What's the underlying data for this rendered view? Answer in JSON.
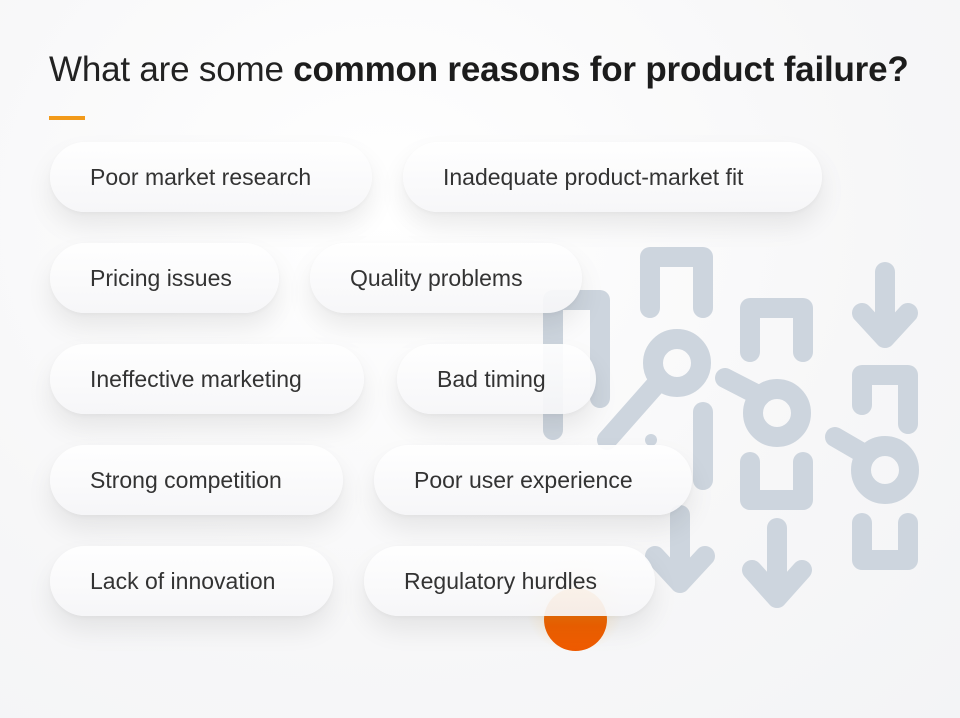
{
  "title": {
    "prefix": "What are some ",
    "bold": "common reasons for product failure?"
  },
  "colors": {
    "accent": "#f29a1a",
    "orb": "#f26200",
    "pattern": "#cdd5de"
  },
  "reasons": [
    "Poor market research",
    "Inadequate product-market fit",
    "Pricing issues",
    "Quality problems",
    "Ineffective marketing",
    "Bad timing",
    "Strong competition",
    "Poor user experience",
    "Lack of innovation",
    "Regulatory hurdles"
  ]
}
